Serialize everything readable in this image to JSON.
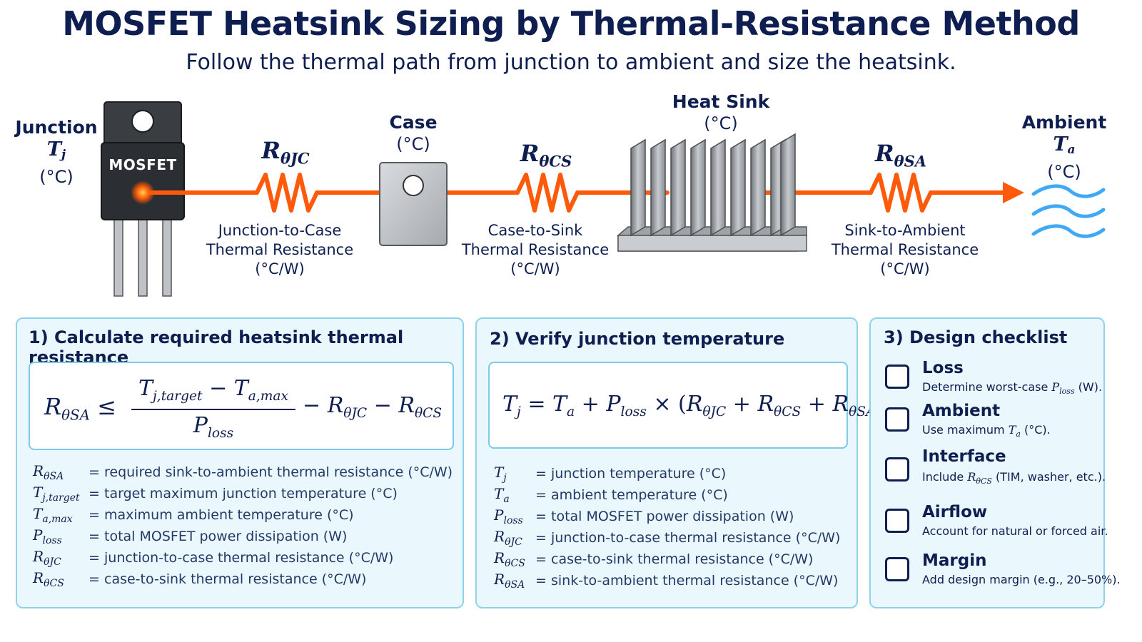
{
  "title": "MOSFET Heatsink Sizing by Thermal-Resistance Method",
  "subtitle": "Follow the thermal path from junction to ambient and size the heatsink.",
  "diagram": {
    "junction": {
      "name": "Junction",
      "symbol": "T",
      "symbol_sub": "j",
      "unit": "(°C)"
    },
    "mosfet_label": "MOSFET",
    "case": {
      "name": "Case",
      "unit": "(°C)"
    },
    "heatsink": {
      "name": "Heat Sink",
      "unit": "(°C)"
    },
    "ambient": {
      "name": "Ambient",
      "symbol": "T",
      "symbol_sub": "a",
      "unit": "(°C)"
    },
    "r_jc": {
      "symbol": "R",
      "sub": "θJC",
      "line1": "Junction-to-Case",
      "line2": "Thermal Resistance",
      "unit": "(°C/W)"
    },
    "r_cs": {
      "symbol": "R",
      "sub": "θCS",
      "line1": "Case-to-Sink",
      "line2": "Thermal Resistance",
      "unit": "(°C/W)"
    },
    "r_sa": {
      "symbol": "R",
      "sub": "θSA",
      "line1": "Sink-to-Ambient",
      "line2": "Thermal Resistance",
      "unit": "(°C/W)"
    },
    "colors": {
      "heat_path": "#ff5a0a",
      "ambient_waves": "#3fa9f5",
      "navy": "#0f1e50"
    }
  },
  "panel1": {
    "title": "1) Calculate required heatsink thermal resistance",
    "formula": {
      "lhs": "R",
      "lhs_sub": "θSA",
      "rel": "≤",
      "num_a": "T",
      "num_a_sub": "j,target",
      "minus": "−",
      "num_b": "T",
      "num_b_sub": "a,max",
      "den": "P",
      "den_sub": "loss",
      "t1": "R",
      "t1_sub": "θJC",
      "t2": "R",
      "t2_sub": "θCS"
    },
    "legend": [
      {
        "sym": "R",
        "sub": "θSA",
        "desc": "required sink-to-ambient thermal resistance (°C/W)"
      },
      {
        "sym": "T",
        "sub": "j,target",
        "desc": "target maximum junction temperature (°C)"
      },
      {
        "sym": "T",
        "sub": "a,max",
        "desc": "maximum ambient temperature (°C)"
      },
      {
        "sym": "P",
        "sub": "loss",
        "desc": "total MOSFET power dissipation (W)"
      },
      {
        "sym": "R",
        "sub": "θJC",
        "desc": "junction-to-case thermal resistance (°C/W)"
      },
      {
        "sym": "R",
        "sub": "θCS",
        "desc": "case-to-sink thermal resistance (°C/W)"
      }
    ]
  },
  "panel2": {
    "title": "2) Verify junction temperature",
    "formula": {
      "lhs": "T",
      "lhs_sub": "j",
      "eq": "=",
      "ta": "T",
      "ta_sub": "a",
      "plus": "+",
      "p": "P",
      "p_sub": "loss",
      "times": "×",
      "r1": "R",
      "r1_sub": "θJC",
      "r2": "R",
      "r2_sub": "θCS",
      "r3": "R",
      "r3_sub": "θSA"
    },
    "legend": [
      {
        "sym": "T",
        "sub": "j",
        "desc": "junction temperature (°C)"
      },
      {
        "sym": "T",
        "sub": "a",
        "desc": "ambient temperature (°C)"
      },
      {
        "sym": "P",
        "sub": "loss",
        "desc": "total MOSFET power dissipation (W)"
      },
      {
        "sym": "R",
        "sub": "θJC",
        "desc": "junction-to-case thermal resistance (°C/W)"
      },
      {
        "sym": "R",
        "sub": "θCS",
        "desc": "case-to-sink thermal resistance (°C/W)"
      },
      {
        "sym": "R",
        "sub": "θSA",
        "desc": "sink-to-ambient thermal resistance (°C/W)"
      }
    ]
  },
  "panel3": {
    "title": "3) Design checklist",
    "items": [
      {
        "title": "Loss",
        "pre": "Determine worst-case ",
        "sym": "P",
        "sub": "loss",
        "post": " (W)."
      },
      {
        "title": "Ambient",
        "pre": "Use maximum ",
        "sym": "T",
        "sub": "a",
        "post": " (°C)."
      },
      {
        "title": "Interface",
        "pre": "Include ",
        "sym": "R",
        "sub": "θCS",
        "post": " (TIM, washer, etc.)."
      },
      {
        "title": "Airflow",
        "pre": "Account for natural or forced air.",
        "sym": "",
        "sub": "",
        "post": ""
      },
      {
        "title": "Margin",
        "pre": "Add design margin (e.g., 20–50%).",
        "sym": "",
        "sub": "",
        "post": ""
      }
    ]
  }
}
